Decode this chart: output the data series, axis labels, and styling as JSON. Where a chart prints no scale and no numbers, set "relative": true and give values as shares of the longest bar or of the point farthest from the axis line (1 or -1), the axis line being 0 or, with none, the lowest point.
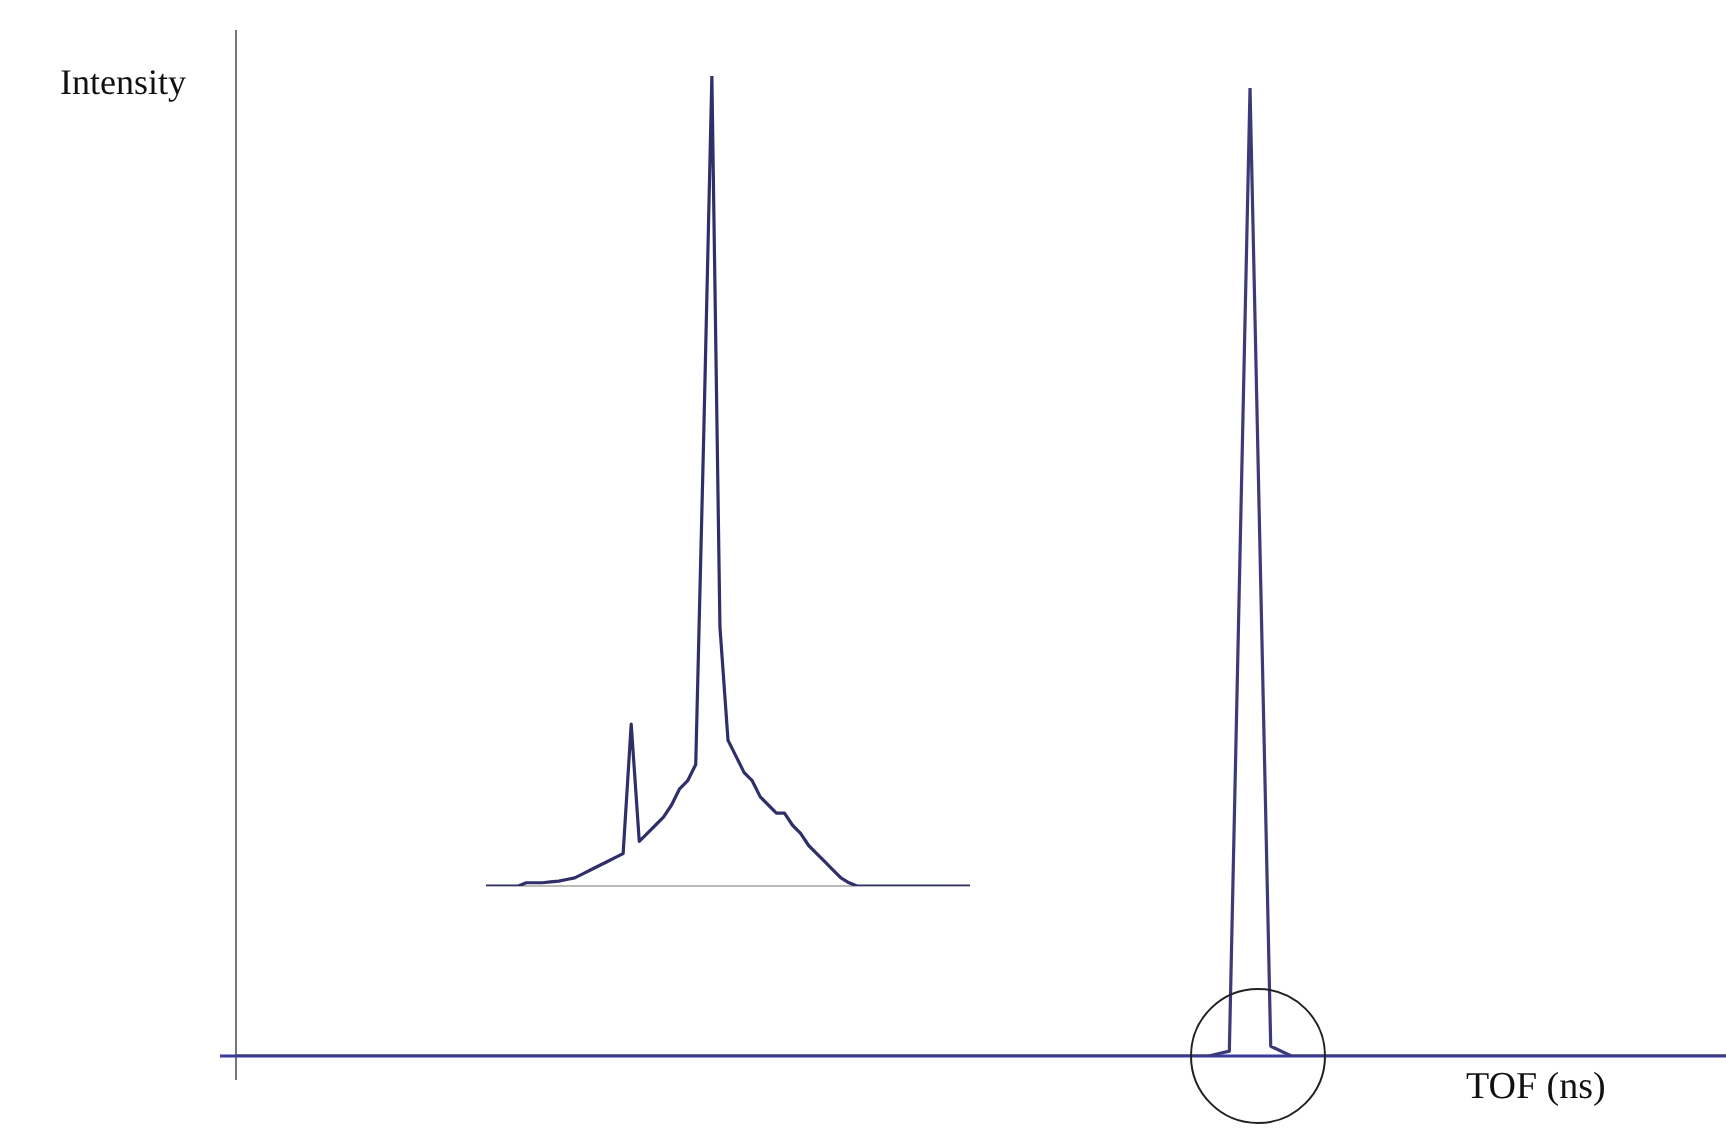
{
  "chart_data": [
    {
      "type": "line",
      "ylabel": "Intensity",
      "xlabel": "TOF (ns)",
      "relative": true,
      "categories": [
        null,
        null,
        null,
        null,
        null,
        null,
        null,
        null,
        null,
        null,
        null,
        null,
        null,
        null,
        null,
        null,
        null,
        null,
        null,
        null,
        null,
        null,
        null,
        null,
        null,
        null,
        null,
        null,
        null,
        null,
        null,
        null,
        null,
        null,
        null,
        null,
        null,
        null,
        null,
        null,
        null,
        null,
        null,
        null,
        null,
        null,
        null,
        null,
        null,
        null,
        null,
        null,
        null,
        null,
        null,
        null,
        null,
        null,
        null,
        null,
        null,
        null,
        null,
        null,
        null,
        null,
        null,
        null,
        null,
        null,
        null,
        null,
        null
      ],
      "series": [
        {
          "color": "#3d3a78",
          "values": [
            0,
            0,
            0,
            0,
            0,
            0,
            0,
            0,
            0,
            0,
            0,
            0,
            0,
            0,
            0,
            0,
            0,
            0,
            0,
            0,
            0,
            0,
            0,
            0,
            0,
            0,
            0,
            0,
            0,
            0,
            0,
            0,
            0,
            0,
            0,
            0,
            0,
            0,
            0,
            0,
            0,
            0,
            0,
            0,
            0,
            0,
            0,
            0,
            0.005,
            1,
            0.01,
            0,
            0,
            0,
            0,
            0,
            0,
            0,
            0,
            0,
            0,
            0,
            0,
            0,
            0,
            0,
            0,
            0,
            0,
            0,
            0,
            0,
            0
          ]
        }
      ]
    },
    {
      "type": "line",
      "relative": true,
      "categories": [
        null,
        null,
        null,
        null,
        null,
        null,
        null,
        null,
        null,
        null,
        null,
        null,
        null,
        null,
        null,
        null,
        null,
        null,
        null,
        null,
        null,
        null,
        null,
        null,
        null,
        null,
        null,
        null,
        null,
        null,
        null,
        null,
        null,
        null,
        null,
        null,
        null,
        null,
        null,
        null,
        null,
        null,
        null,
        null,
        null,
        null,
        null,
        null,
        null,
        null,
        null,
        null,
        null,
        null,
        null,
        null,
        null,
        null,
        null,
        null,
        null
      ],
      "series": [
        {
          "color": "#2f2f6a",
          "values": [
            0,
            0,
            0,
            0,
            0,
            0.004,
            0.004,
            0.004,
            0.005,
            0.006,
            0.008,
            0.01,
            0.015,
            0.02,
            0.025,
            0.03,
            0.035,
            0.04,
            0.2,
            0.055,
            0.065,
            0.075,
            0.085,
            0.1,
            0.12,
            0.13,
            0.15,
            0.56,
            1,
            0.32,
            0.18,
            0.16,
            0.14,
            0.13,
            0.11,
            0.1,
            0.09,
            0.09,
            0.075,
            0.065,
            0.05,
            0.04,
            0.03,
            0.02,
            0.01,
            0.004,
            0,
            0,
            0,
            0,
            0,
            0,
            0,
            0,
            0,
            0,
            0,
            0,
            0,
            0,
            0
          ]
        }
      ]
    }
  ]
}
